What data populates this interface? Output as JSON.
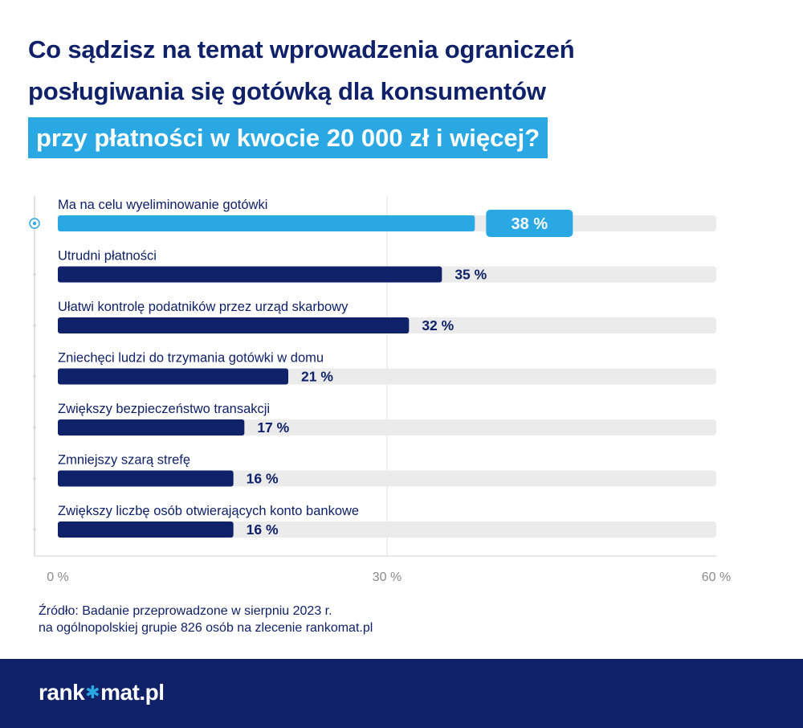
{
  "title": {
    "line1": "Co sądzisz na temat wprowadzenia ograniczeń",
    "line2": "posługiwania się gotówką dla konsumentów",
    "line3": "przy płatności w kwocie 20 000 zł i więcej?"
  },
  "chart_data": {
    "type": "bar",
    "orientation": "horizontal",
    "categories": [
      "Ma na celu wyeliminowanie gotówki",
      "Utrudni płatności",
      "Ułatwi kontrolę podatników przez urząd skarbowy",
      "Zniechęci ludzi do trzymania gotówki w domu",
      "Zwiększy bezpieczeństwo transakcji",
      "Zmniejszy szarą strefę",
      "Zwiększy liczbę osób otwierających konto bankowe"
    ],
    "values": [
      38,
      35,
      32,
      21,
      17,
      16,
      16
    ],
    "value_labels": [
      "38 %",
      "35 %",
      "32 %",
      "21 %",
      "17 %",
      "16 %",
      "16 %"
    ],
    "highlight_index": 0,
    "xlim": [
      0,
      60
    ],
    "xticks": [
      0,
      30,
      60
    ],
    "xtick_labels": [
      "0 %",
      "30 %",
      "60 %"
    ],
    "grid": true,
    "colors": {
      "bar": "#0f2168",
      "highlight": "#2aa8e3",
      "track": "#ebebeb",
      "label": "#0f2168"
    }
  },
  "source": {
    "line1": "Źródło: Badanie przeprowadzone w sierpniu 2023 r.",
    "line2": "na ogólnopolskiej grupie 826 osób na zlecenie rankomat.pl"
  },
  "footer": {
    "logo_left": "rank",
    "logo_star": "✱",
    "logo_right": "mat.pl"
  }
}
